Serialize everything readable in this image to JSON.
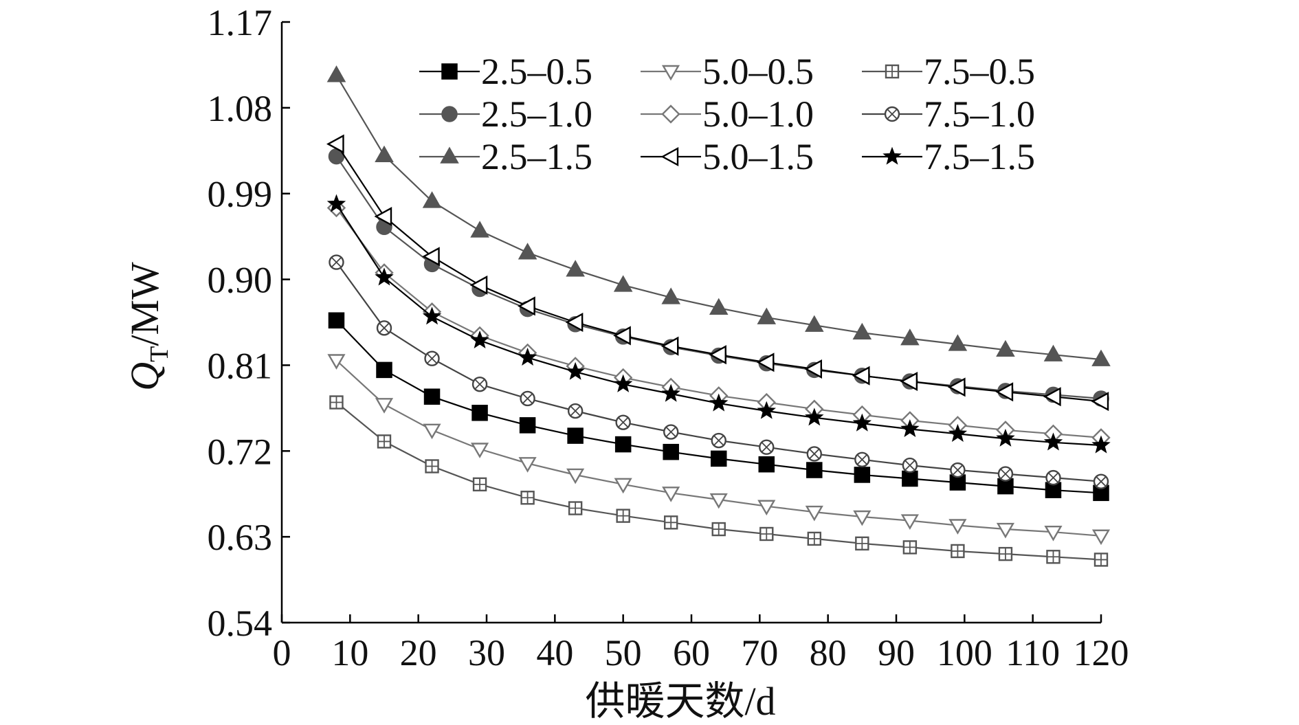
{
  "chart_data": {
    "type": "line",
    "title": "",
    "xlabel": "供暖天数/d",
    "ylabel": {
      "main": "Q",
      "sub": "T",
      "unit": "/MW"
    },
    "xlim": [
      0,
      120
    ],
    "ylim": [
      0.54,
      1.17
    ],
    "xticks": [
      "0",
      "10",
      "20",
      "30",
      "40",
      "50",
      "60",
      "70",
      "80",
      "90",
      "100",
      "110",
      "120"
    ],
    "yticks": [
      "0.54",
      "0.63",
      "0.72",
      "0.81",
      "0.90",
      "0.99",
      "1.08",
      "1.17"
    ],
    "grid": false,
    "legend_position": "top-right",
    "x": [
      8,
      15,
      22,
      29,
      36,
      43,
      50,
      57,
      64,
      71,
      78,
      85,
      92,
      99,
      106,
      113,
      120
    ],
    "series": [
      {
        "name": "2.5–0.5",
        "marker": "square-filled",
        "color": "#000000",
        "values": [
          0.857,
          0.805,
          0.777,
          0.76,
          0.747,
          0.736,
          0.727,
          0.719,
          0.712,
          0.706,
          0.7,
          0.695,
          0.691,
          0.687,
          0.683,
          0.679,
          0.676
        ]
      },
      {
        "name": "2.5–1.0",
        "marker": "circle-filled",
        "color": "#555555",
        "values": [
          1.029,
          0.955,
          0.916,
          0.89,
          0.869,
          0.853,
          0.84,
          0.829,
          0.82,
          0.812,
          0.805,
          0.799,
          0.793,
          0.788,
          0.783,
          0.779,
          0.775
        ]
      },
      {
        "name": "2.5–1.5",
        "marker": "triangle-up-filled",
        "color": "#555555",
        "values": [
          1.114,
          1.03,
          0.982,
          0.951,
          0.928,
          0.91,
          0.894,
          0.881,
          0.87,
          0.86,
          0.852,
          0.844,
          0.838,
          0.832,
          0.826,
          0.821,
          0.816
        ]
      },
      {
        "name": "5.0–0.5",
        "marker": "triangle-down-open",
        "color": "#777777",
        "values": [
          0.815,
          0.769,
          0.742,
          0.722,
          0.707,
          0.695,
          0.685,
          0.676,
          0.669,
          0.662,
          0.656,
          0.651,
          0.647,
          0.642,
          0.638,
          0.635,
          0.631
        ]
      },
      {
        "name": "5.0–1.0",
        "marker": "diamond-open",
        "color": "#777777",
        "values": [
          0.975,
          0.907,
          0.866,
          0.841,
          0.823,
          0.809,
          0.797,
          0.787,
          0.778,
          0.771,
          0.764,
          0.758,
          0.752,
          0.747,
          0.742,
          0.738,
          0.734
        ]
      },
      {
        "name": "5.0–1.5",
        "marker": "triangle-left-open",
        "color": "#000000",
        "values": [
          1.042,
          0.966,
          0.924,
          0.894,
          0.872,
          0.855,
          0.841,
          0.83,
          0.821,
          0.813,
          0.806,
          0.799,
          0.793,
          0.787,
          0.782,
          0.777,
          0.772
        ]
      },
      {
        "name": "7.5–0.5",
        "marker": "square-plus-open",
        "color": "#555555",
        "values": [
          0.771,
          0.73,
          0.704,
          0.685,
          0.671,
          0.66,
          0.652,
          0.645,
          0.638,
          0.633,
          0.628,
          0.623,
          0.619,
          0.615,
          0.612,
          0.609,
          0.606
        ]
      },
      {
        "name": "7.5–1.0",
        "marker": "circle-x-open",
        "color": "#444444",
        "values": [
          0.918,
          0.849,
          0.817,
          0.79,
          0.775,
          0.762,
          0.75,
          0.74,
          0.731,
          0.724,
          0.717,
          0.711,
          0.705,
          0.7,
          0.696,
          0.692,
          0.688
        ]
      },
      {
        "name": "7.5–1.5",
        "marker": "star",
        "color": "#000000",
        "values": [
          0.979,
          0.902,
          0.861,
          0.836,
          0.818,
          0.803,
          0.79,
          0.78,
          0.77,
          0.762,
          0.755,
          0.749,
          0.743,
          0.738,
          0.733,
          0.729,
          0.726
        ]
      }
    ]
  }
}
